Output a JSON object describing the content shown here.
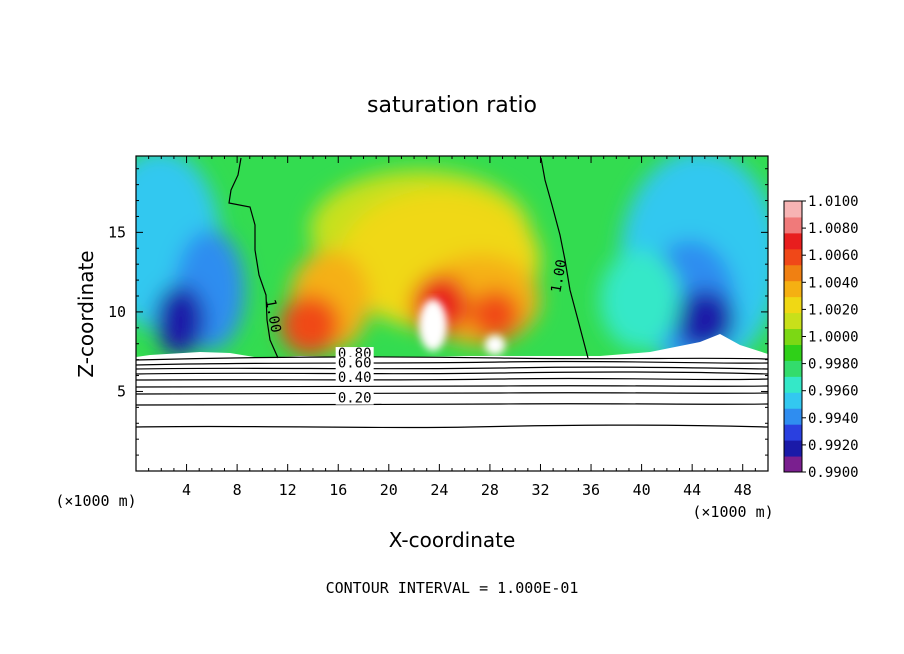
{
  "chart_data": {
    "type": "heatmap",
    "title": "saturation ratio",
    "xlabel": "X-coordinate",
    "ylabel": "Z-coordinate",
    "x_unit_label": "(×1000 m)",
    "y_unit_label": "(×1000 m)",
    "xlim": [
      0,
      50
    ],
    "ylim": [
      0,
      19.8
    ],
    "x_ticks": [
      4,
      8,
      12,
      16,
      20,
      24,
      28,
      32,
      36,
      40,
      44,
      48
    ],
    "y_ticks": [
      5,
      10,
      15
    ],
    "footer": "CONTOUR INTERVAL = 1.000E-01",
    "colorbar": {
      "levels": [
        "1.0100",
        "1.0080",
        "1.0060",
        "1.0040",
        "1.0020",
        "1.0000",
        "0.9980",
        "0.9960",
        "0.9940",
        "0.9920",
        "0.9900"
      ],
      "colors": [
        "#7a1f8f",
        "#1a1aa8",
        "#2a40e0",
        "#2f8df0",
        "#33c8f0",
        "#34e8c8",
        "#33dc6c",
        "#2fd018",
        "#7cd814",
        "#c8e01a",
        "#f0d814",
        "#f5b012",
        "#f08012",
        "#f04818",
        "#e81e1e",
        "#f07a7a",
        "#f7b4b4"
      ]
    },
    "contour_labels": [
      {
        "text": "1.00",
        "x": 10.5,
        "z": 9.7
      },
      {
        "text": "1.00",
        "x": 33.8,
        "z": 12.2
      },
      {
        "text": "0.80",
        "x": 17.3,
        "z": 7.1
      },
      {
        "text": "0.60",
        "x": 17.3,
        "z": 6.5
      },
      {
        "text": "0.40",
        "x": 17.3,
        "z": 5.6
      },
      {
        "text": "0.20",
        "x": 17.3,
        "z": 4.3
      }
    ]
  }
}
